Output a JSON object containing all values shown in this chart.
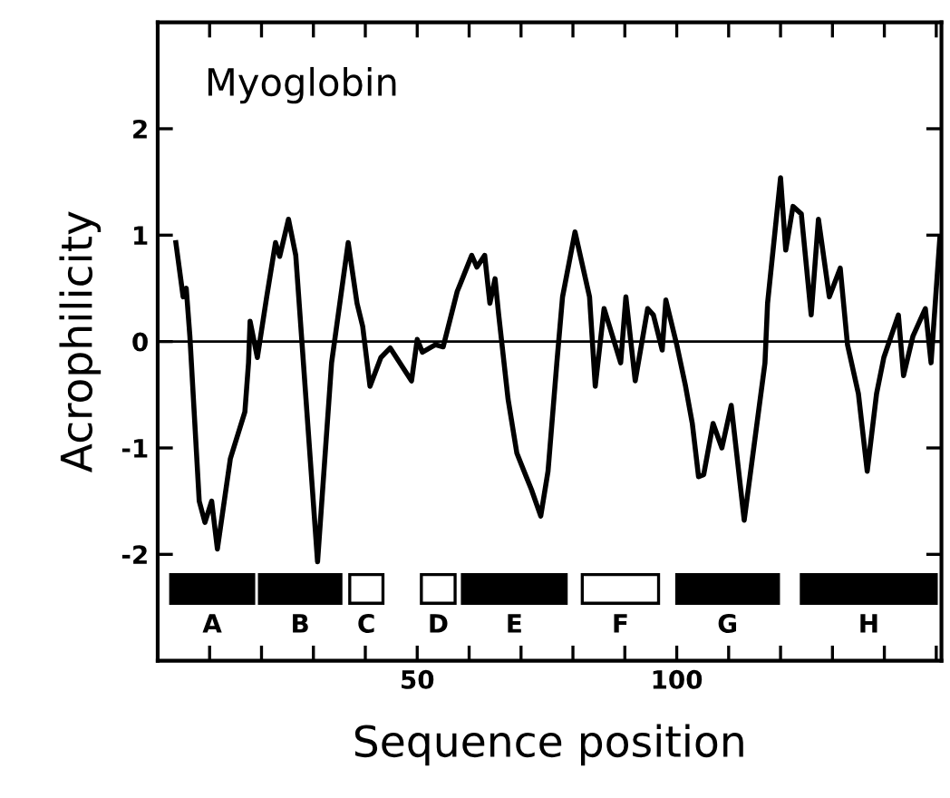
{
  "chart_data": {
    "type": "line",
    "xlabel": "Sequence position",
    "ylabel": "Acrophilicity",
    "annotations": [
      "Myoglobin"
    ],
    "xlim": [
      0,
      151
    ],
    "ylim": [
      -3,
      3
    ],
    "xticks": [
      {
        "value": 10,
        "label": null
      },
      {
        "value": 20,
        "label": null
      },
      {
        "value": 30,
        "label": null
      },
      {
        "value": 40,
        "label": null
      },
      50,
      {
        "value": 60,
        "label": null
      },
      {
        "value": 70,
        "label": null
      },
      {
        "value": 80,
        "label": null
      },
      {
        "value": 90,
        "label": null
      },
      100,
      {
        "value": 110,
        "label": null
      },
      {
        "value": 120,
        "label": null
      },
      {
        "value": 130,
        "label": null
      },
      {
        "value": 140,
        "label": null
      },
      {
        "value": 150,
        "label": null
      }
    ],
    "yticks": [
      -2,
      -1,
      0,
      1,
      2
    ],
    "grid": false,
    "legend": false,
    "marker": "none",
    "line_style": "solid",
    "ref_lines": [
      {
        "axis": "y",
        "value": 0,
        "color": "#000000"
      }
    ],
    "bands": [
      {
        "axis": "x",
        "from": 2.5,
        "to": 18.5,
        "label": "A",
        "color": "#000000"
      },
      {
        "axis": "x",
        "from": 19.6,
        "to": 35.3,
        "label": "B",
        "color": "#000000"
      },
      {
        "axis": "x",
        "from": 37,
        "to": 43.4,
        "label": "C",
        "color": "#ffffff"
      },
      {
        "axis": "x",
        "from": 50.8,
        "to": 57.3,
        "label": "D",
        "color": "#ffffff"
      },
      {
        "axis": "x",
        "from": 58.7,
        "to": 78.7,
        "label": "E",
        "color": "#000000"
      },
      {
        "axis": "x",
        "from": 81.8,
        "to": 96.5,
        "label": "F",
        "color": "#ffffff"
      },
      {
        "axis": "x",
        "from": 100,
        "to": 119.6,
        "label": "G",
        "color": "#000000"
      },
      {
        "axis": "x",
        "from": 124,
        "to": 150,
        "label": "H",
        "color": "#000000"
      }
    ],
    "series": [
      {
        "color": "#000000",
        "x": [
          3.5,
          4.9,
          5.5,
          6.2,
          8,
          9.1,
          10.4,
          11.5,
          14,
          16.8,
          17.5,
          17.8,
          19.2,
          21,
          22.7,
          23.5,
          25.2,
          26.6,
          30.8,
          33.5,
          36.7,
          38.4,
          39.5,
          40.9,
          43,
          44.8,
          48.9,
          50,
          51,
          53.5,
          55,
          57.7,
          58.7,
          60.5,
          61.5,
          63,
          64,
          65,
          65.7,
          67.5,
          69.2,
          71,
          72,
          73.8,
          75.2,
          76.9,
          78,
          80.4,
          83.2,
          84.3,
          86,
          89.2,
          90.2,
          92,
          94.4,
          95.5,
          97.2,
          97.9,
          100,
          101.7,
          103,
          104.2,
          105.2,
          107,
          108.7,
          110.5,
          113,
          114.7,
          117,
          117.5,
          120,
          121,
          122.4,
          124,
          125.9,
          127.3,
          129.4,
          131.5,
          132.9,
          135,
          136.7,
          138.5,
          139.9,
          142.7,
          143.7,
          145.5,
          147.9,
          149,
          150.7,
          151
        ],
        "values": [
          0.93,
          0.42,
          0.5,
          0.05,
          -1.5,
          -1.7,
          -1.5,
          -1.95,
          -1.1,
          -0.66,
          -0.2,
          0.19,
          -0.15,
          0.42,
          0.93,
          0.8,
          1.15,
          0.81,
          -2.07,
          -0.2,
          0.93,
          0.36,
          0.14,
          -0.42,
          -0.15,
          -0.06,
          -0.37,
          0.02,
          -0.1,
          -0.03,
          -0.05,
          0.47,
          0.59,
          0.81,
          0.7,
          0.81,
          0.36,
          0.59,
          0.25,
          -0.54,
          -1.05,
          -1.27,
          -1.39,
          -1.64,
          -1.22,
          -0.2,
          0.42,
          1.03,
          0.42,
          -0.42,
          0.31,
          -0.2,
          0.42,
          -0.37,
          0.31,
          0.25,
          -0.08,
          0.39,
          -0.03,
          -0.42,
          -0.77,
          -1.27,
          -1.25,
          -0.77,
          -1.0,
          -0.6,
          -1.68,
          -1.05,
          -0.2,
          0.36,
          1.54,
          0.86,
          1.27,
          1.2,
          0.25,
          1.15,
          0.42,
          0.69,
          -0.03,
          -0.49,
          -1.22,
          -0.49,
          -0.15,
          0.25,
          -0.32,
          0.05,
          0.31,
          -0.2,
          0.98,
          0.98
        ]
      }
    ]
  }
}
